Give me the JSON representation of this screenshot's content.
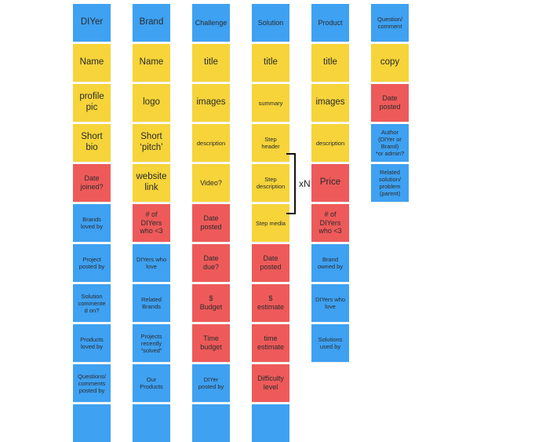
{
  "colors": {
    "blue": "#3ea1f2",
    "yellow": "#f6d43a",
    "red": "#ee5a5a"
  },
  "columns": [
    {
      "notes": [
        {
          "text": "DIYer",
          "color": "blue",
          "size": "lg"
        },
        {
          "text": "Name",
          "color": "yellow",
          "size": "lg"
        },
        {
          "text": "profile\npic",
          "color": "yellow",
          "size": "lg"
        },
        {
          "text": "Short\nbio",
          "color": "yellow",
          "size": "lg"
        },
        {
          "text": "Date\njoined?",
          "color": "red",
          "size": "md"
        },
        {
          "text": "Brands\nloved by",
          "color": "blue",
          "size": "sm"
        },
        {
          "text": "Project\nposted by",
          "color": "blue",
          "size": "sm"
        },
        {
          "text": "Solution\ncommente\nd on?",
          "color": "blue",
          "size": "sm"
        },
        {
          "text": "Products\nloved by",
          "color": "blue",
          "size": "sm"
        },
        {
          "text": "Questions/\ncomments\nposted by",
          "color": "blue",
          "size": "sm"
        },
        {
          "text": "",
          "color": "blue",
          "size": "sm"
        }
      ]
    },
    {
      "notes": [
        {
          "text": "Brand",
          "color": "blue",
          "size": "lg"
        },
        {
          "text": "Name",
          "color": "yellow",
          "size": "lg"
        },
        {
          "text": "logo",
          "color": "yellow",
          "size": "lg"
        },
        {
          "text": "Short\n‘pitch’",
          "color": "yellow",
          "size": "lg"
        },
        {
          "text": "website\nlink",
          "color": "yellow",
          "size": "lg"
        },
        {
          "text": "# of\nDIYers\nwho <3",
          "color": "red",
          "size": "md"
        },
        {
          "text": "DIYers who\nlove",
          "color": "blue",
          "size": "sm"
        },
        {
          "text": "Related\nBrands",
          "color": "blue",
          "size": "sm"
        },
        {
          "text": "Projects\nrecently\n“solved”",
          "color": "blue",
          "size": "sm"
        },
        {
          "text": "Our\nProducts",
          "color": "blue",
          "size": "sm"
        },
        {
          "text": "",
          "color": "blue",
          "size": "sm"
        }
      ]
    },
    {
      "notes": [
        {
          "text": "Challenge",
          "color": "blue",
          "size": "md"
        },
        {
          "text": "title",
          "color": "yellow",
          "size": "lg"
        },
        {
          "text": "images",
          "color": "yellow",
          "size": "lg"
        },
        {
          "text": "description",
          "color": "yellow",
          "size": "sm"
        },
        {
          "text": "Video?",
          "color": "yellow",
          "size": "md"
        },
        {
          "text": "Date\nposted",
          "color": "red",
          "size": "md"
        },
        {
          "text": "Date\ndue?",
          "color": "red",
          "size": "md"
        },
        {
          "text": "$\nBudget",
          "color": "red",
          "size": "md"
        },
        {
          "text": "Time\nbudget",
          "color": "red",
          "size": "md"
        },
        {
          "text": "DIYer\nposted by",
          "color": "blue",
          "size": "sm"
        },
        {
          "text": "",
          "color": "blue",
          "size": "sm"
        }
      ]
    },
    {
      "notes": [
        {
          "text": "Solution",
          "color": "blue",
          "size": "md"
        },
        {
          "text": "title",
          "color": "yellow",
          "size": "lg"
        },
        {
          "text": "summary",
          "color": "yellow",
          "size": "sm"
        },
        {
          "text": "Step\nheader",
          "color": "yellow",
          "size": "sm"
        },
        {
          "text": "Step\ndescription",
          "color": "yellow",
          "size": "sm"
        },
        {
          "text": "Step media",
          "color": "yellow",
          "size": "sm"
        },
        {
          "text": "Date\nposted",
          "color": "red",
          "size": "md"
        },
        {
          "text": "$\nestimate",
          "color": "red",
          "size": "md"
        },
        {
          "text": "time\nestimate",
          "color": "red",
          "size": "md"
        },
        {
          "text": "Difficulty\nlevel",
          "color": "red",
          "size": "md"
        },
        {
          "text": "",
          "color": "blue",
          "size": "sm"
        }
      ]
    },
    {
      "notes": [
        {
          "text": "Product",
          "color": "blue",
          "size": "md"
        },
        {
          "text": "title",
          "color": "yellow",
          "size": "lg"
        },
        {
          "text": "images",
          "color": "yellow",
          "size": "lg"
        },
        {
          "text": "description",
          "color": "yellow",
          "size": "sm"
        },
        {
          "text": "Price",
          "color": "red",
          "size": "lg"
        },
        {
          "text": "# of\nDIYers\nwho <3",
          "color": "red",
          "size": "md"
        },
        {
          "text": "Brand\nowned by",
          "color": "blue",
          "size": "sm"
        },
        {
          "text": "DIYers who\nlove",
          "color": "blue",
          "size": "sm"
        },
        {
          "text": "Solutions\nused by",
          "color": "blue",
          "size": "sm"
        }
      ]
    },
    {
      "notes": [
        {
          "text": "Question/\ncomment",
          "color": "blue",
          "size": "sm"
        },
        {
          "text": "copy",
          "color": "yellow",
          "size": "lg"
        },
        {
          "text": "Date\nposted",
          "color": "red",
          "size": "md"
        },
        {
          "text": "Author\n(DIYer or\nBrand)\n*or admin?",
          "color": "blue",
          "size": "sm"
        },
        {
          "text": "Related\nsolution/\nproblem\n(parent)",
          "color": "blue",
          "size": "sm"
        }
      ]
    }
  ],
  "bracket_label": "xN"
}
